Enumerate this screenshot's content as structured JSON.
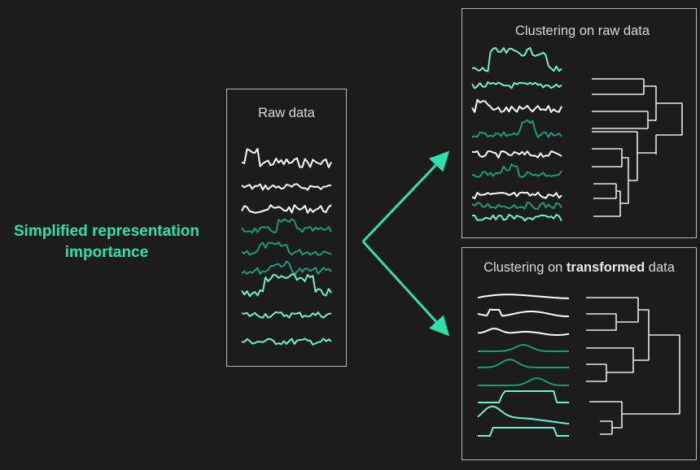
{
  "headline": {
    "line1": "Simplified representation",
    "line2": "importance"
  },
  "raw_panel": {
    "title": "Raw data"
  },
  "cluster_raw_panel": {
    "title": "Clustering on raw data"
  },
  "cluster_transformed_panel": {
    "title_prefix": "Clustering on ",
    "title_bold": "transformed",
    "title_suffix": " data"
  },
  "colors": {
    "background": "#1c1c1c",
    "accent_text": "#2ee0b0",
    "arrow": "#2ee0b0",
    "white_series": "#ffffff",
    "dark_green_series": "#1a9b77",
    "light_green_series": "#6ff0c8",
    "panel_border": "#b8b8b8"
  }
}
